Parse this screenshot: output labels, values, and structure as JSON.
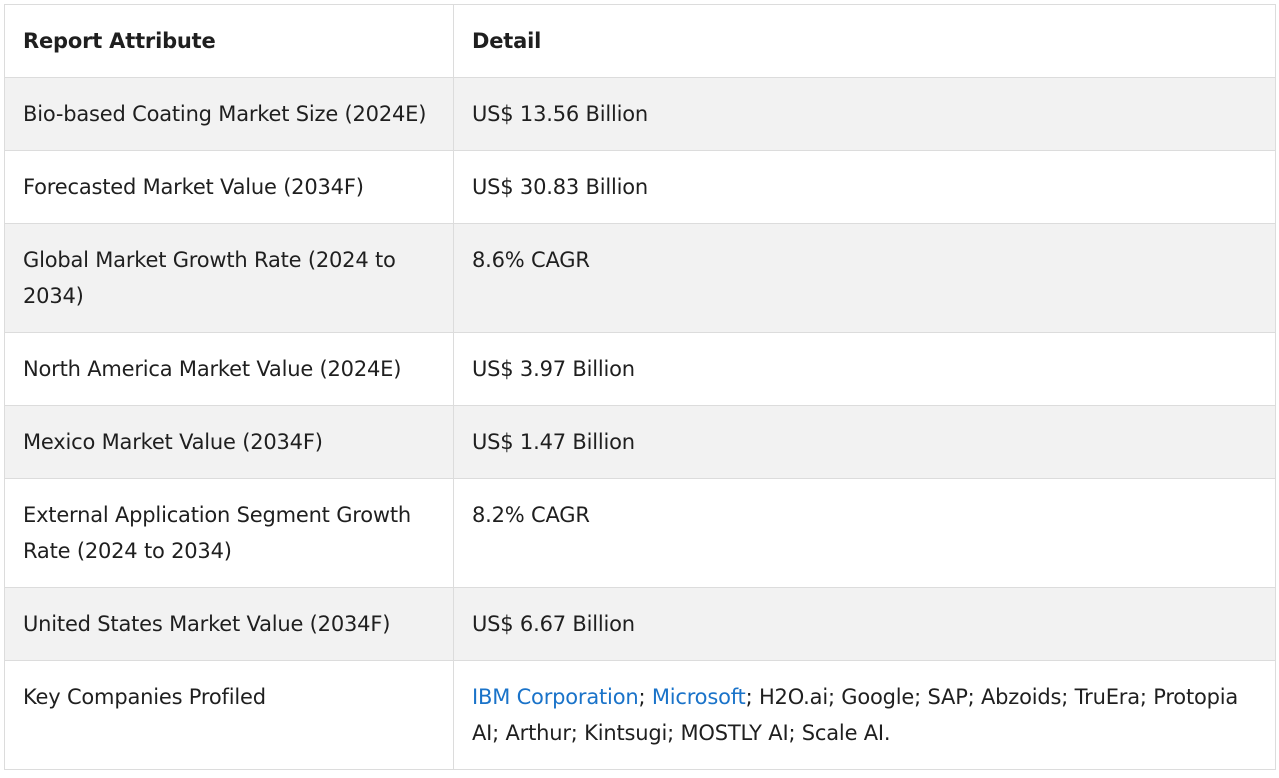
{
  "table": {
    "headers": [
      "Report Attribute",
      "Detail"
    ],
    "rows": [
      {
        "attribute": "Bio-based Coating Market Size (2024E)",
        "detail": "US$ 13.56 Billion"
      },
      {
        "attribute": "Forecasted Market Value (2034F)",
        "detail": "US$ 30.83 Billion"
      },
      {
        "attribute": "Global Market Growth Rate (2024 to 2034)",
        "detail": "8.6% CAGR"
      },
      {
        "attribute": "North America Market Value (2024E)",
        "detail": "US$ 3.97 Billion"
      },
      {
        "attribute": "Mexico Market Value (2034F)",
        "detail": "US$ 1.47 Billion"
      },
      {
        "attribute": "External Application Segment Growth Rate (2024 to 2034)",
        "detail": "8.2% CAGR"
      },
      {
        "attribute": "United States Market Value (2034F)",
        "detail": "US$ 6.67 Billion"
      }
    ],
    "companies_row": {
      "attribute": "Key Companies Profiled",
      "link1": "IBM Corporation",
      "sep1": "; ",
      "link2": "Microsoft",
      "rest": "; H2O.ai; Google; SAP; Abzoids; TruEra; Protopia AI; Arthur; Kintsugi; MOSTLY AI; Scale AI."
    }
  },
  "colors": {
    "link": "#1a73c9",
    "stripe": "#f2f2f2",
    "border": "#dcdcdc"
  }
}
